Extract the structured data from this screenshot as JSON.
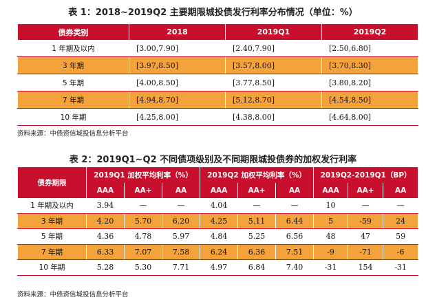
{
  "table1": {
    "title": "表 1：2018~2019Q2 主要期限城投债发行利率分布情况（单位：%）",
    "headers": [
      "债券类别",
      "2018",
      "2019Q1",
      "2019Q2"
    ],
    "rows": [
      {
        "label": "1 年期及以内",
        "c1": "[3.00,7.90]",
        "c2": "[2.40,7.90]",
        "c3": "[2.50,6.80]"
      },
      {
        "label": "3 年期",
        "c1": "[3.97,8.50]",
        "c2": "[3.57,8.00]",
        "c3": "[3.70,8.30]"
      },
      {
        "label": "5 年期",
        "c1": "[4.00,8.50]",
        "c2": "[3.77,8.50]",
        "c3": "[3.80,8.20]"
      },
      {
        "label": "7 年期",
        "c1": "[4.94,8.70]",
        "c2": "[5.12,8.70]",
        "c3": "[4.54,8.50]"
      },
      {
        "label": "10 年期",
        "c1": "[4.25,8.00]",
        "c2": "[4.38,8.00]",
        "c3": "[4.64,8.00]"
      }
    ],
    "source": "资料来源：中债资信城投信息分析平台"
  },
  "table2": {
    "title": "表 2：2019Q1~Q2 不同债项级别及不同期限城投债券的加权发行利率",
    "row_header": "债券期限",
    "groups": [
      "2019Q1 加权平均利率（%）",
      "2019Q2 加权平均利率（%）",
      "2019Q2-2019Q1（BP）"
    ],
    "subheads": [
      "AAA",
      "AA+",
      "AA",
      "AAA",
      "AA+",
      "AA",
      "AAA",
      "AA+",
      "AA"
    ],
    "rows": [
      {
        "label": "1 年期及以内",
        "v": [
          "3.94",
          "—",
          "—",
          "4.04",
          "—",
          "—",
          "10",
          "—",
          "—"
        ]
      },
      {
        "label": "3 年期",
        "v": [
          "4.20",
          "5.70",
          "6.20",
          "4.25",
          "5.11",
          "6.44",
          "5",
          "-59",
          "24"
        ]
      },
      {
        "label": "5 年期",
        "v": [
          "4.36",
          "4.78",
          "5.97",
          "4.84",
          "5.25",
          "6.56",
          "48",
          "47",
          "59"
        ]
      },
      {
        "label": "7 年期",
        "v": [
          "6.33",
          "7.07",
          "7.58",
          "6.24",
          "6.36",
          "7.51",
          "-9",
          "-71",
          "-6"
        ]
      },
      {
        "label": "10 年期",
        "v": [
          "5.28",
          "5.30",
          "7.71",
          "4.97",
          "6.84",
          "7.40",
          "-31",
          "154",
          "-31"
        ]
      }
    ],
    "source": "资料来源：中债资信城投信息分析平台"
  },
  "colors": {
    "header_red": "#c8102e",
    "row_orange": "#f4a23c"
  }
}
